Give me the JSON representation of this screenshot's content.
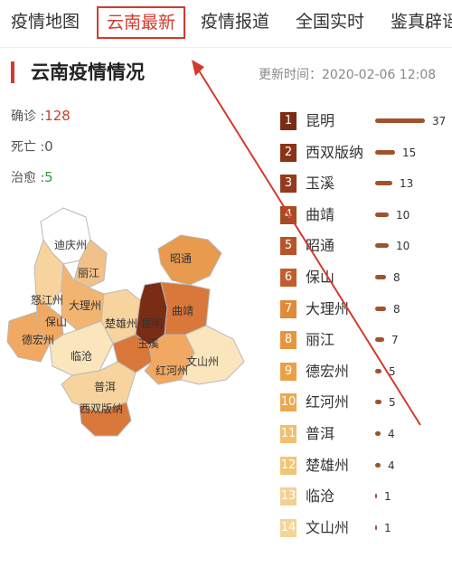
{
  "nav": {
    "tabs": [
      {
        "label": "疫情地图",
        "active": false
      },
      {
        "label": "云南最新",
        "active": true
      },
      {
        "label": "疫情报道",
        "active": false
      },
      {
        "label": "全国实时",
        "active": false
      },
      {
        "label": "鉴真辟谣",
        "active": false
      }
    ]
  },
  "header": {
    "title": "云南疫情情况",
    "updated": "更新时间：2020-02-06 12:08"
  },
  "stats": {
    "confirmed_label": "确诊 :",
    "confirmed_value": "128",
    "deaths_label": "死亡 :",
    "deaths_value": "0",
    "recovered_label": "治愈 :",
    "recovered_value": "5"
  },
  "map": {
    "regions": [
      {
        "name": "迪庆州",
        "color": "#ffffff"
      },
      {
        "name": "丽江",
        "color": "#f2c089"
      },
      {
        "name": "怒江州",
        "color": "#f7d49e"
      },
      {
        "name": "大理州",
        "color": "#f2b471"
      },
      {
        "name": "保山",
        "color": "#f0a863"
      },
      {
        "name": "德宏州",
        "color": "#f0a863"
      },
      {
        "name": "楚雄州",
        "color": "#f7d49e"
      },
      {
        "name": "昆明",
        "color": "#7a2c14"
      },
      {
        "name": "昭通",
        "color": "#e89a4f"
      },
      {
        "name": "曲靖",
        "color": "#d9783a"
      },
      {
        "name": "玉溪",
        "color": "#d9783a"
      },
      {
        "name": "临沧",
        "color": "#fae5bd"
      },
      {
        "name": "普洱",
        "color": "#f7d49e"
      },
      {
        "name": "红河州",
        "color": "#f0a863"
      },
      {
        "name": "文山州",
        "color": "#fae5bd"
      },
      {
        "name": "西双版纳",
        "color": "#d9783a"
      }
    ]
  },
  "ranking": {
    "items": [
      {
        "rank": "1",
        "name": "昆明",
        "value": 37,
        "badge": "#7a2c14",
        "bar": "#a0522d"
      },
      {
        "rank": "2",
        "name": "西双版纳",
        "value": 15,
        "badge": "#8a3417",
        "bar": "#a0522d"
      },
      {
        "rank": "3",
        "name": "玉溪",
        "value": 13,
        "badge": "#933b1b",
        "bar": "#a0522d"
      },
      {
        "rank": "4",
        "name": "曲靖",
        "value": 10,
        "badge": "#a84a22",
        "bar": "#a0522d"
      },
      {
        "rank": "5",
        "name": "昭通",
        "value": 10,
        "badge": "#b8542a",
        "bar": "#a0522d"
      },
      {
        "rank": "6",
        "name": "保山",
        "value": 8,
        "badge": "#c25e2e",
        "bar": "#a0522d"
      },
      {
        "rank": "7",
        "name": "大理州",
        "value": 8,
        "badge": "#e08a3a",
        "bar": "#a0522d"
      },
      {
        "rank": "8",
        "name": "丽江",
        "value": 7,
        "badge": "#e8963e",
        "bar": "#a0522d"
      },
      {
        "rank": "9",
        "name": "德宏州",
        "value": 5,
        "badge": "#eba046",
        "bar": "#a0522d"
      },
      {
        "rank": "10",
        "name": "红河州",
        "value": 5,
        "badge": "#eda84e",
        "bar": "#a0522d"
      },
      {
        "rank": "11",
        "name": "普洱",
        "value": 4,
        "badge": "#f2c06a",
        "bar": "#a0522d"
      },
      {
        "rank": "12",
        "name": "楚雄州",
        "value": 4,
        "badge": "#f2c476",
        "bar": "#a0522d"
      },
      {
        "rank": "13",
        "name": "临沧",
        "value": 1,
        "badge": "#f5d090",
        "bar": "#a0522d"
      },
      {
        "rank": "14",
        "name": "文山州",
        "value": 1,
        "badge": "#f5d494",
        "bar": "#a0522d"
      }
    ]
  },
  "annotation": {
    "color": "#d23b2e",
    "icon": "arrow-icon"
  }
}
